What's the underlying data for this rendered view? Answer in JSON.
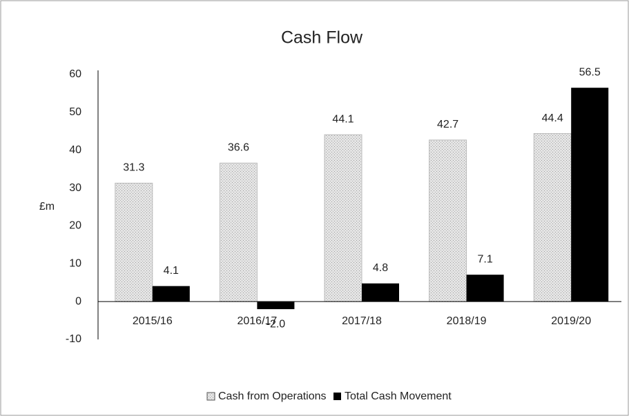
{
  "chart_data": {
    "type": "bar",
    "title": "Cash Flow",
    "y_label": "£m",
    "categories": [
      "2015/16",
      "2016/17",
      "2017/18",
      "2018/19",
      "2019/20"
    ],
    "series": [
      {
        "name": "Cash from Operations",
        "color": "#d4d4d4",
        "values": [
          31.3,
          36.6,
          44.1,
          42.7,
          44.4
        ],
        "value_labels": [
          "31.3",
          "36.6",
          "44.1",
          "42.7",
          "44.4"
        ]
      },
      {
        "name": "Total Cash Movement",
        "color": "#000000",
        "values": [
          4.1,
          -2.0,
          4.8,
          7.1,
          56.5
        ],
        "value_labels": [
          "4.1",
          "-2.0",
          "4.8",
          "7.1",
          "56.5"
        ]
      }
    ],
    "ylim": [
      -10,
      60
    ],
    "yticks": [
      -10,
      0,
      10,
      20,
      30,
      40,
      50,
      60
    ],
    "grid": false,
    "legend": "bottom"
  }
}
